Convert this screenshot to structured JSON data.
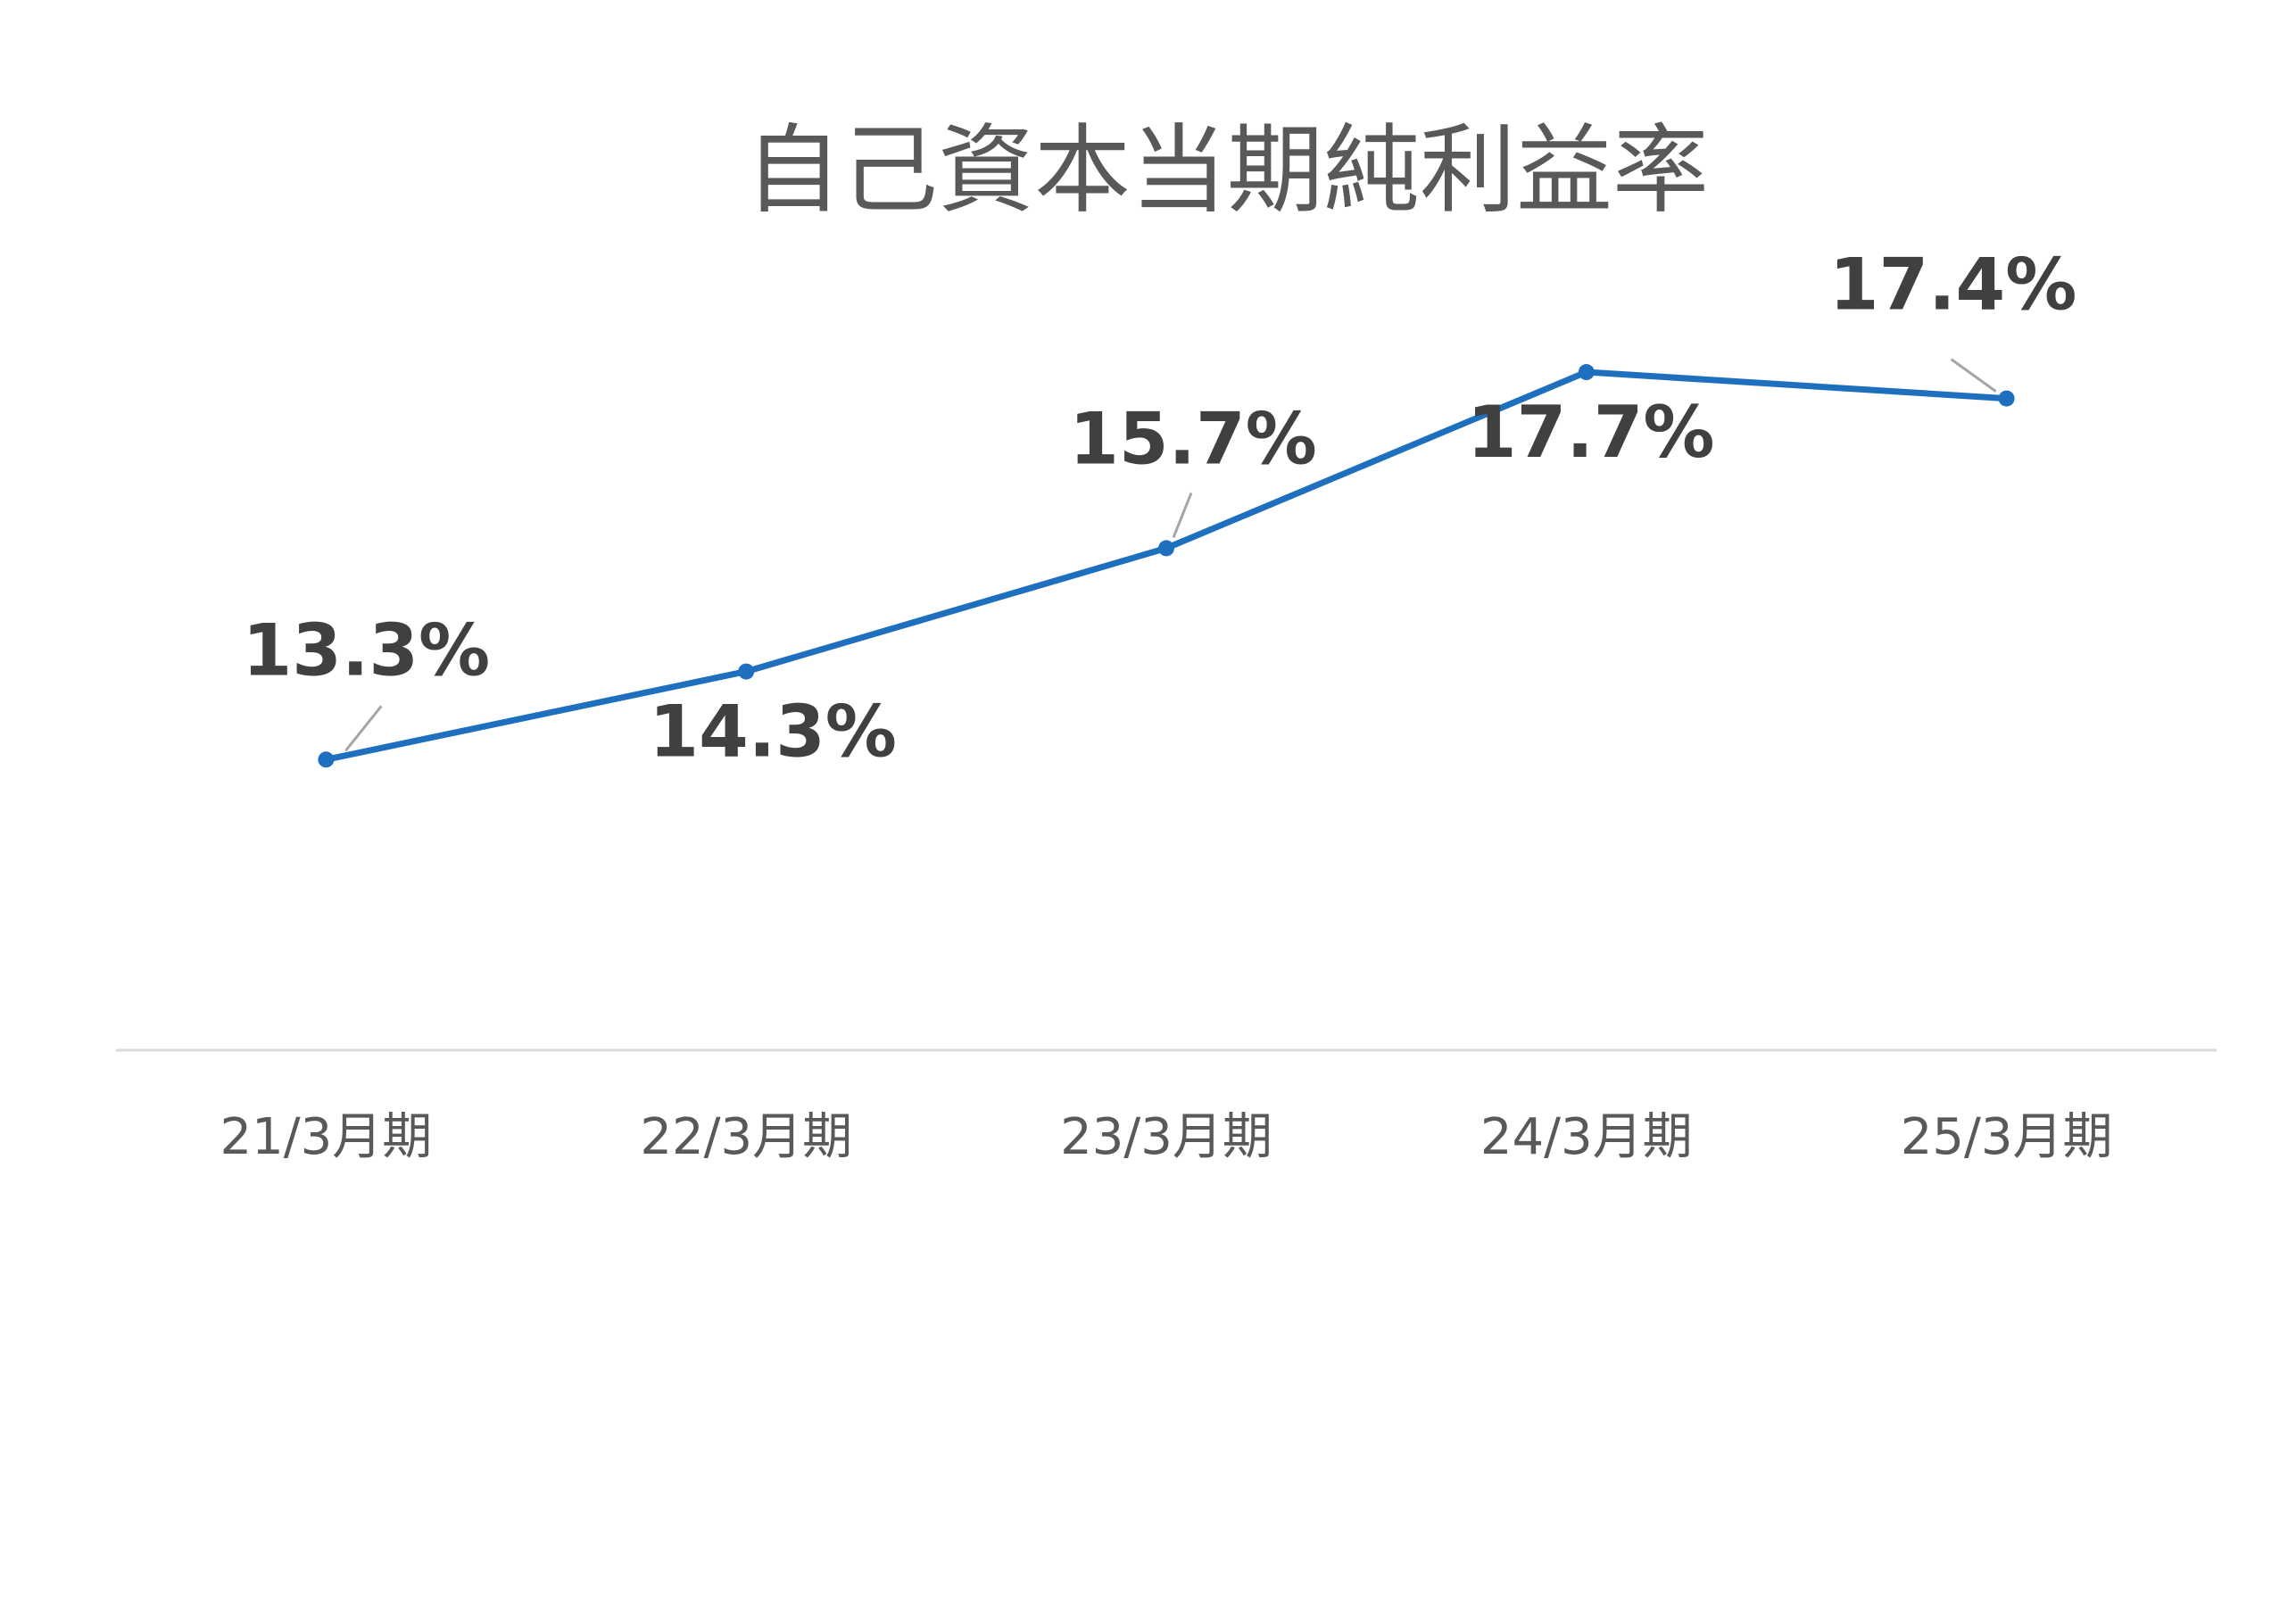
{
  "chart_data": {
    "type": "line",
    "title": "自己資本当期純利益率",
    "categories": [
      "21/3月期",
      "22/3月期",
      "23/3月期",
      "24/3月期",
      "25/3月期"
    ],
    "series": [
      {
        "values": [
          13.3,
          14.3,
          15.7,
          17.7,
          17.4
        ],
        "labels": [
          "13.3%",
          "14.3%",
          "15.7%",
          "17.7%",
          "17.4%"
        ],
        "color": "#1f6fbf"
      }
    ],
    "ylim": [
      10,
      20
    ],
    "grid": false,
    "legend": "none"
  }
}
